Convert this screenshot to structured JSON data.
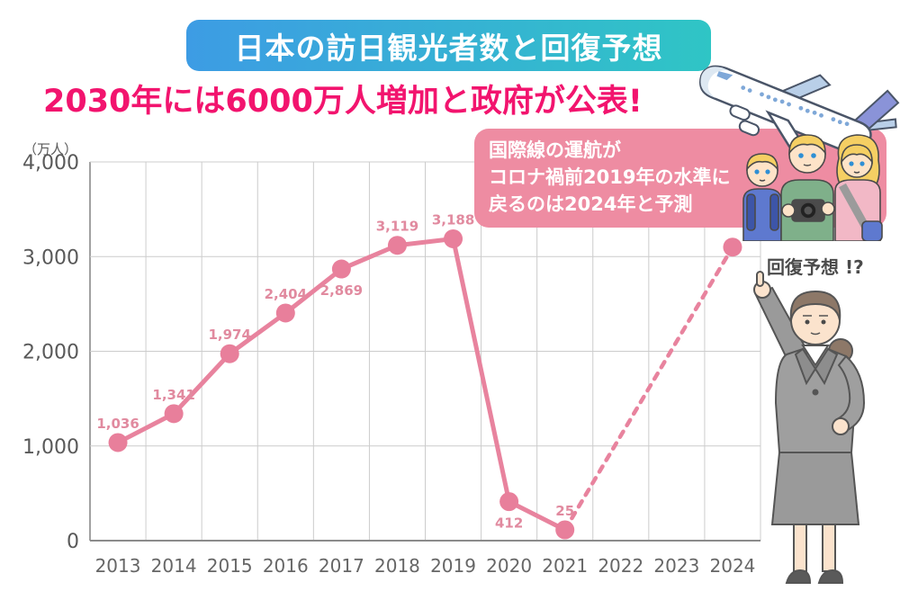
{
  "banner": {
    "text": "日本の訪日観光者数と回復予想",
    "gradient_from": "#3d9ce4",
    "gradient_to": "#2fc5c5",
    "text_color": "#ffffff"
  },
  "headline": {
    "text": "2030年には6000万人増加と政府が公表!",
    "color": "#f2146e"
  },
  "callout": {
    "bg": "#ee8ca2",
    "text_color": "#ffffff",
    "lines": [
      "国際線の運航が",
      "コロナ禍前2019年の水準に",
      "戻るのは2024年と予測"
    ]
  },
  "recovery_note": {
    "text": "回復予想 !?",
    "color": "#4b4b4b"
  },
  "icons": {
    "airplane": "airplane",
    "tourists": "tourist-family",
    "businesswoman": "businesswoman-pointing-up"
  },
  "chart_data": {
    "type": "line",
    "title": "日本の訪日観光者数と回復予想",
    "unit_label": "（万人）",
    "xlabel": "",
    "ylabel": "万人",
    "categories": [
      "2013",
      "2014",
      "2015",
      "2016",
      "2017",
      "2018",
      "2019",
      "2020",
      "2021",
      "2022",
      "2023",
      "2024"
    ],
    "series": [
      {
        "name": "訪日観光者数",
        "values": [
          1036,
          1341,
          1974,
          2404,
          2869,
          3119,
          3188,
          412,
          25,
          null,
          null,
          3100
        ]
      }
    ],
    "point_labels": [
      "1,036",
      "1,341",
      "1,974",
      "2,404",
      "2,869",
      "3,119",
      "3,188",
      "412",
      "25",
      "",
      "",
      ""
    ],
    "label_positions": [
      "above",
      "above",
      "above",
      "above",
      "below",
      "above",
      "above",
      "below",
      "above",
      "",
      "",
      ""
    ],
    "ylim": [
      0,
      4000
    ],
    "y_ticks": [
      {
        "value": 0,
        "label": "0"
      },
      {
        "value": 1000,
        "label": "1,000"
      },
      {
        "value": 2000,
        "label": "2,000"
      },
      {
        "value": 3000,
        "label": "3,000"
      },
      {
        "value": 4000,
        "label": "4,000"
      }
    ],
    "grid": true,
    "legend": "none",
    "solid_segment": [
      0,
      8
    ],
    "dashed_segment": [
      8,
      11
    ],
    "line_color": "#e8839e",
    "point_color": "#e87f9b",
    "data_label_color": "#e18a9f",
    "grid_color": "#cccccc",
    "axis_color": "#8b8b8b",
    "tick_color": "#595959"
  }
}
